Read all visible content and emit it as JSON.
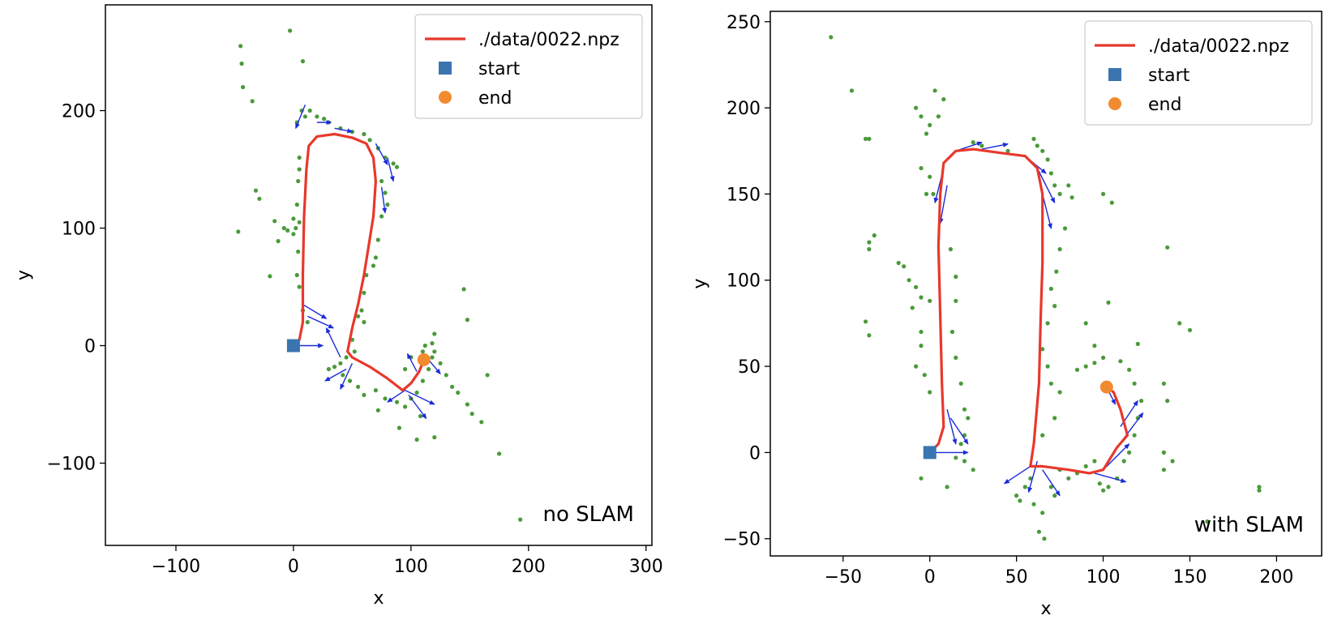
{
  "colors": {
    "trajectory": "#e8382b",
    "start": "#3a75b0",
    "end": "#f28a30",
    "landmarks": "#4a9a3a",
    "arrows": "#1a2bd8"
  },
  "chart_data": [
    {
      "type": "line",
      "xlabel": "x",
      "ylabel": "y",
      "xlim": [
        -160,
        305
      ],
      "ylim": [
        -170,
        290
      ],
      "xticks": [
        -100,
        0,
        100,
        200,
        300
      ],
      "yticks": [
        -100,
        0,
        100,
        200
      ],
      "xtick_labels": [
        "−100",
        "0",
        "100",
        "200",
        "300"
      ],
      "ytick_labels": [
        "−100",
        "0",
        "100",
        "200"
      ],
      "legend": {
        "position": "top-right",
        "entries": [
          {
            "label": "./data/0022.npz",
            "kind": "line"
          },
          {
            "label": "start",
            "kind": "square"
          },
          {
            "label": "end",
            "kind": "circle"
          }
        ]
      },
      "annotation": "no SLAM",
      "series": [
        {
          "name": "./data/0022.npz",
          "kind": "trajectory",
          "points": [
            [
              0,
              0
            ],
            [
              5,
              5
            ],
            [
              8,
              20
            ],
            [
              8,
              60
            ],
            [
              9,
              110
            ],
            [
              11,
              150
            ],
            [
              13,
              170
            ],
            [
              20,
              178
            ],
            [
              35,
              180
            ],
            [
              50,
              177
            ],
            [
              62,
              172
            ],
            [
              68,
              160
            ],
            [
              70,
              140
            ],
            [
              68,
              110
            ],
            [
              64,
              85
            ],
            [
              60,
              60
            ],
            [
              55,
              35
            ],
            [
              50,
              15
            ],
            [
              46,
              -5
            ],
            [
              50,
              -10
            ],
            [
              65,
              -18
            ],
            [
              80,
              -28
            ],
            [
              93,
              -38
            ],
            [
              100,
              -32
            ],
            [
              107,
              -22
            ],
            [
              111,
              -12
            ]
          ]
        }
      ],
      "start": [
        0,
        0
      ],
      "end": [
        111,
        -12
      ],
      "landmarks": [
        [
          -45,
          255
        ],
        [
          -44,
          240
        ],
        [
          -43,
          220
        ],
        [
          -35,
          208
        ],
        [
          -3,
          268
        ],
        [
          8,
          242
        ],
        [
          -47,
          97
        ],
        [
          -32,
          132
        ],
        [
          -29,
          125
        ],
        [
          -20,
          59
        ],
        [
          -13,
          89
        ],
        [
          -16,
          106
        ],
        [
          -8,
          100
        ],
        [
          -5,
          98
        ],
        [
          0,
          95
        ],
        [
          0,
          108
        ],
        [
          5,
          105
        ],
        [
          3,
          190
        ],
        [
          7,
          200
        ],
        [
          10,
          195
        ],
        [
          14,
          200
        ],
        [
          20,
          195
        ],
        [
          26,
          193
        ],
        [
          30,
          190
        ],
        [
          40,
          185
        ],
        [
          50,
          182
        ],
        [
          60,
          180
        ],
        [
          65,
          175
        ],
        [
          72,
          168
        ],
        [
          78,
          160
        ],
        [
          85,
          155
        ],
        [
          88,
          152
        ],
        [
          5,
          160
        ],
        [
          5,
          150
        ],
        [
          4,
          140
        ],
        [
          3,
          120
        ],
        [
          2,
          100
        ],
        [
          4,
          80
        ],
        [
          3,
          60
        ],
        [
          5,
          50
        ],
        [
          8,
          30
        ],
        [
          12,
          20
        ],
        [
          75,
          140
        ],
        [
          78,
          130
        ],
        [
          80,
          120
        ],
        [
          75,
          110
        ],
        [
          72,
          90
        ],
        [
          70,
          75
        ],
        [
          68,
          68
        ],
        [
          62,
          60
        ],
        [
          60,
          45
        ],
        [
          58,
          30
        ],
        [
          55,
          25
        ],
        [
          60,
          20
        ],
        [
          50,
          5
        ],
        [
          52,
          -5
        ],
        [
          45,
          -10
        ],
        [
          40,
          -15
        ],
        [
          35,
          -18
        ],
        [
          30,
          -20
        ],
        [
          42,
          -25
        ],
        [
          48,
          -30
        ],
        [
          55,
          -35
        ],
        [
          60,
          -42
        ],
        [
          70,
          -38
        ],
        [
          78,
          -45
        ],
        [
          88,
          -48
        ],
        [
          95,
          -52
        ],
        [
          100,
          -45
        ],
        [
          105,
          -40
        ],
        [
          110,
          -30
        ],
        [
          115,
          -20
        ],
        [
          118,
          -10
        ],
        [
          120,
          -5
        ],
        [
          125,
          -15
        ],
        [
          130,
          -25
        ],
        [
          135,
          -35
        ],
        [
          140,
          -40
        ],
        [
          148,
          -50
        ],
        [
          152,
          -58
        ],
        [
          160,
          -65
        ],
        [
          165,
          -25
        ],
        [
          148,
          22
        ],
        [
          145,
          48
        ],
        [
          175,
          -92
        ],
        [
          193,
          -148
        ],
        [
          105,
          -80
        ],
        [
          120,
          -78
        ],
        [
          108,
          -60
        ],
        [
          90,
          -70
        ],
        [
          72,
          -55
        ],
        [
          95,
          -20
        ],
        [
          100,
          -10
        ],
        [
          112,
          0
        ],
        [
          120,
          10
        ],
        [
          118,
          2
        ],
        [
          110,
          -5
        ]
      ],
      "arrows": [
        [
          10,
          205,
          -8,
          -20
        ],
        [
          20,
          190,
          12,
          0
        ],
        [
          35,
          185,
          15,
          -3
        ],
        [
          70,
          172,
          10,
          -18
        ],
        [
          80,
          160,
          5,
          -20
        ],
        [
          75,
          135,
          3,
          -22
        ],
        [
          8,
          35,
          20,
          -12
        ],
        [
          12,
          25,
          22,
          -10
        ],
        [
          0,
          0,
          25,
          0
        ],
        [
          40,
          -10,
          -12,
          25
        ],
        [
          45,
          -20,
          -18,
          -10
        ],
        [
          50,
          -15,
          -10,
          -22
        ],
        [
          95,
          -38,
          -15,
          -10
        ],
        [
          95,
          -38,
          25,
          -12
        ],
        [
          98,
          -42,
          15,
          -20
        ],
        [
          105,
          -22,
          -8,
          15
        ],
        [
          115,
          -12,
          10,
          -12
        ]
      ]
    },
    {
      "type": "line",
      "xlabel": "x",
      "ylabel": "y",
      "xlim": [
        -92,
        226
      ],
      "ylim": [
        -60,
        256
      ],
      "xticks": [
        -50,
        0,
        50,
        100,
        150,
        200
      ],
      "yticks": [
        -50,
        0,
        50,
        100,
        150,
        200,
        250
      ],
      "xtick_labels": [
        "−50",
        "0",
        "50",
        "100",
        "150",
        "200"
      ],
      "ytick_labels": [
        "−50",
        "0",
        "50",
        "100",
        "150",
        "200",
        "250"
      ],
      "legend": {
        "position": "top-right",
        "entries": [
          {
            "label": "./data/0022.npz",
            "kind": "line"
          },
          {
            "label": "start",
            "kind": "square"
          },
          {
            "label": "end",
            "kind": "circle"
          }
        ]
      },
      "annotation": "with SLAM",
      "series": [
        {
          "name": "./data/0022.npz",
          "kind": "trajectory",
          "points": [
            [
              0,
              0
            ],
            [
              5,
              5
            ],
            [
              8,
              15
            ],
            [
              7,
              40
            ],
            [
              6,
              80
            ],
            [
              5,
              120
            ],
            [
              6,
              150
            ],
            [
              8,
              168
            ],
            [
              15,
              175
            ],
            [
              25,
              176
            ],
            [
              40,
              174
            ],
            [
              55,
              172
            ],
            [
              62,
              165
            ],
            [
              65,
              150
            ],
            [
              65,
              110
            ],
            [
              64,
              80
            ],
            [
              63,
              40
            ],
            [
              60,
              5
            ],
            [
              58,
              -8
            ],
            [
              65,
              -8
            ],
            [
              80,
              -10
            ],
            [
              92,
              -12
            ],
            [
              100,
              -10
            ],
            [
              108,
              3
            ],
            [
              114,
              10
            ],
            [
              110,
              25
            ],
            [
              106,
              35
            ],
            [
              102,
              38
            ]
          ]
        }
      ],
      "start": [
        0,
        0
      ],
      "end": [
        102,
        38
      ],
      "landmarks": [
        [
          -57,
          241
        ],
        [
          -45,
          210
        ],
        [
          -37,
          182
        ],
        [
          -35,
          182
        ],
        [
          -35,
          122
        ],
        [
          -35,
          118
        ],
        [
          -32,
          126
        ],
        [
          -37,
          76
        ],
        [
          -35,
          68
        ],
        [
          -15,
          108
        ],
        [
          -12,
          100
        ],
        [
          -8,
          96
        ],
        [
          -5,
          90
        ],
        [
          0,
          88
        ],
        [
          -10,
          84
        ],
        [
          -18,
          110
        ],
        [
          -5,
          70
        ],
        [
          -5,
          62
        ],
        [
          -8,
          50
        ],
        [
          -3,
          45
        ],
        [
          0,
          35
        ],
        [
          -8,
          200
        ],
        [
          -5,
          195
        ],
        [
          -2,
          185
        ],
        [
          0,
          190
        ],
        [
          3,
          210
        ],
        [
          5,
          195
        ],
        [
          8,
          205
        ],
        [
          -2,
          150
        ],
        [
          0,
          160
        ],
        [
          2,
          150
        ],
        [
          -5,
          165
        ],
        [
          12,
          118
        ],
        [
          15,
          102
        ],
        [
          15,
          88
        ],
        [
          13,
          70
        ],
        [
          15,
          55
        ],
        [
          18,
          40
        ],
        [
          20,
          25
        ],
        [
          22,
          20
        ],
        [
          25,
          -10
        ],
        [
          20,
          -5
        ],
        [
          15,
          -3
        ],
        [
          18,
          5
        ],
        [
          20,
          10
        ],
        [
          60,
          182
        ],
        [
          62,
          178
        ],
        [
          65,
          175
        ],
        [
          68,
          170
        ],
        [
          70,
          162
        ],
        [
          72,
          155
        ],
        [
          75,
          150
        ],
        [
          80,
          155
        ],
        [
          82,
          148
        ],
        [
          78,
          130
        ],
        [
          75,
          118
        ],
        [
          73,
          105
        ],
        [
          70,
          95
        ],
        [
          72,
          85
        ],
        [
          68,
          75
        ],
        [
          65,
          60
        ],
        [
          68,
          50
        ],
        [
          70,
          40
        ],
        [
          75,
          35
        ],
        [
          72,
          20
        ],
        [
          65,
          10
        ],
        [
          58,
          -15
        ],
        [
          55,
          -20
        ],
        [
          50,
          -25
        ],
        [
          52,
          -28
        ],
        [
          60,
          -30
        ],
        [
          65,
          -35
        ],
        [
          70,
          -20
        ],
        [
          72,
          -25
        ],
        [
          75,
          -10
        ],
        [
          80,
          -15
        ],
        [
          85,
          -12
        ],
        [
          90,
          -8
        ],
        [
          95,
          -5
        ],
        [
          98,
          -18
        ],
        [
          100,
          -22
        ],
        [
          103,
          -20
        ],
        [
          108,
          -15
        ],
        [
          112,
          -5
        ],
        [
          115,
          0
        ],
        [
          118,
          10
        ],
        [
          120,
          20
        ],
        [
          122,
          30
        ],
        [
          118,
          40
        ],
        [
          115,
          48
        ],
        [
          110,
          53
        ],
        [
          100,
          55
        ],
        [
          95,
          52
        ],
        [
          90,
          50
        ],
        [
          85,
          48
        ],
        [
          95,
          62
        ],
        [
          90,
          75
        ],
        [
          103,
          87
        ],
        [
          105,
          145
        ],
        [
          100,
          150
        ],
        [
          137,
          119
        ],
        [
          144,
          75
        ],
        [
          150,
          71
        ],
        [
          120,
          63
        ],
        [
          135,
          40
        ],
        [
          137,
          30
        ],
        [
          140,
          -5
        ],
        [
          135,
          -10
        ],
        [
          135,
          0
        ],
        [
          160,
          -40
        ],
        [
          190,
          -20
        ],
        [
          190,
          -22
        ],
        [
          63,
          -46
        ],
        [
          66,
          -50
        ],
        [
          -5,
          -15
        ],
        [
          10,
          -20
        ],
        [
          25,
          180
        ],
        [
          30,
          178
        ],
        [
          45,
          175
        ]
      ],
      "arrows": [
        [
          8,
          165,
          -5,
          -20
        ],
        [
          10,
          155,
          -4,
          -22
        ],
        [
          15,
          175,
          15,
          5
        ],
        [
          30,
          176,
          15,
          3
        ],
        [
          55,
          172,
          12,
          -10
        ],
        [
          62,
          165,
          10,
          -20
        ],
        [
          65,
          150,
          5,
          -20
        ],
        [
          10,
          25,
          5,
          -20
        ],
        [
          12,
          20,
          10,
          -15
        ],
        [
          0,
          0,
          22,
          0
        ],
        [
          58,
          -8,
          -15,
          -10
        ],
        [
          62,
          -5,
          -5,
          -18
        ],
        [
          65,
          -10,
          10,
          -15
        ],
        [
          95,
          -12,
          18,
          -5
        ],
        [
          100,
          -10,
          15,
          15
        ],
        [
          108,
          3,
          15,
          20
        ],
        [
          110,
          15,
          10,
          15
        ],
        [
          102,
          38,
          5,
          -10
        ]
      ]
    }
  ]
}
